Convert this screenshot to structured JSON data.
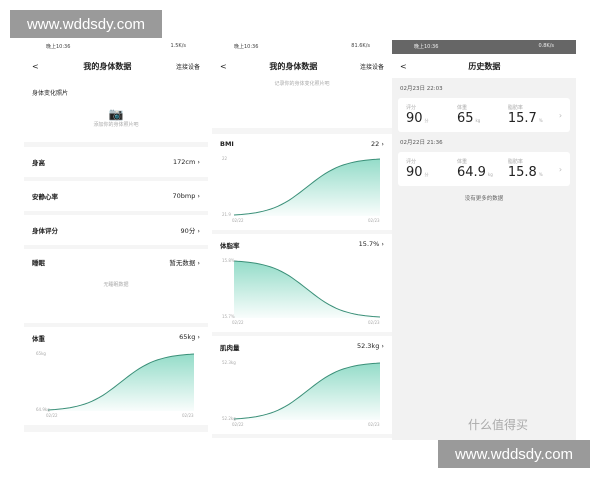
{
  "watermarks": {
    "site": "www.wddsdy.com",
    "brand": "什么值得买"
  },
  "accent": "#3cbf9c",
  "p1": {
    "status_l": "晚上10:36",
    "status_r": "1.5K/s",
    "back": "<",
    "title": "我的身体数据",
    "connect": "连接设备",
    "photo_title": "身体变化照片",
    "photo_hint": "添加你的身体照片吧",
    "rows": [
      {
        "label": "身高",
        "value": "172cm"
      },
      {
        "label": "安静心率",
        "value": "70bmp"
      },
      {
        "label": "身体评分",
        "value": "90分"
      }
    ],
    "sleep": {
      "label": "睡眠",
      "value": "暂无数据",
      "empty": "无睡眠数据"
    },
    "weight": {
      "label": "体重",
      "value": "65kg",
      "ymax": "65kg",
      "ymin": "64.9kg",
      "x0": "02/22",
      "x1": "02/23"
    }
  },
  "p2": {
    "status_l": "晚上10:36",
    "status_r": "81.6K/s",
    "back": "<",
    "title": "我的身体数据",
    "connect": "连接设备",
    "hint": "记录你的身体变化照片吧",
    "bmi": {
      "label": "BMI",
      "value": "22",
      "ymax": "22",
      "ymin": "21.9",
      "x0": "02/22",
      "x1": "02/23"
    },
    "fat": {
      "label": "体脂率",
      "value": "15.7%",
      "ymax": "15.8%",
      "ymin": "15.7%",
      "x0": "02/22",
      "x1": "02/23"
    },
    "muscle": {
      "label": "肌肉量",
      "value": "52.3kg",
      "ymax": "52.3kg",
      "ymin": "52.2kg",
      "x0": "02/22",
      "x1": "02/23"
    }
  },
  "p3": {
    "status_l": "晚上10:36",
    "status_r": "0.8K/s",
    "back": "<",
    "title": "历史数据",
    "records": [
      {
        "date": "02月23日 22:03",
        "score_l": "评分",
        "score": "90",
        "score_u": "分",
        "weight_l": "体重",
        "weight": "65",
        "weight_u": "kg",
        "fat_l": "脂肪率",
        "fat": "15.7",
        "fat_u": "%"
      },
      {
        "date": "02月22日 21:36",
        "score_l": "评分",
        "score": "90",
        "score_u": "分",
        "weight_l": "体重",
        "weight": "64.9",
        "weight_u": "kg",
        "fat_l": "脂肪率",
        "fat": "15.8",
        "fat_u": "%"
      }
    ],
    "no_more": "没有更多的数据"
  }
}
